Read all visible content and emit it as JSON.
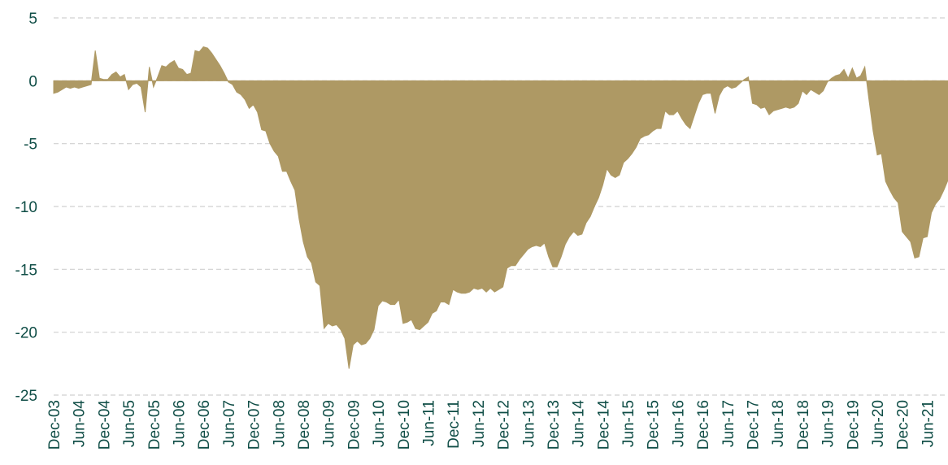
{
  "chart_data": {
    "type": "area",
    "color": "#ae9964",
    "grid": true,
    "ylim": [
      -25,
      5
    ],
    "yticks": [
      5,
      0,
      -5,
      -10,
      -15,
      -20,
      -25
    ],
    "categories": [
      "Dec-03",
      null,
      null,
      null,
      null,
      null,
      "Jun-04",
      null,
      null,
      null,
      null,
      null,
      "Dec-04",
      null,
      null,
      null,
      null,
      null,
      "Jun-05",
      null,
      null,
      null,
      null,
      null,
      "Dec-05",
      null,
      null,
      null,
      null,
      null,
      "Jun-06",
      null,
      null,
      null,
      null,
      null,
      "Dec-06",
      null,
      null,
      null,
      null,
      null,
      "Jun-07",
      null,
      null,
      null,
      null,
      null,
      "Dec-07",
      null,
      null,
      null,
      null,
      null,
      "Jun-08",
      null,
      null,
      null,
      null,
      null,
      "Dec-08",
      null,
      null,
      null,
      null,
      null,
      "Jun-09",
      null,
      null,
      null,
      null,
      null,
      "Dec-09",
      null,
      null,
      null,
      null,
      null,
      "Jun-10",
      null,
      null,
      null,
      null,
      null,
      "Dec-10",
      null,
      null,
      null,
      null,
      null,
      "Jun-11",
      null,
      null,
      null,
      null,
      null,
      "Dec-11",
      null,
      null,
      null,
      null,
      null,
      "Jun-12",
      null,
      null,
      null,
      null,
      null,
      "Dec-12",
      null,
      null,
      null,
      null,
      null,
      "Jun-13",
      null,
      null,
      null,
      null,
      null,
      "Dec-13",
      null,
      null,
      null,
      null,
      null,
      "Jun-14",
      null,
      null,
      null,
      null,
      null,
      "Dec-14",
      null,
      null,
      null,
      null,
      null,
      "Jun-15",
      null,
      null,
      null,
      null,
      null,
      "Dec-15",
      null,
      null,
      null,
      null,
      null,
      "Jun-16",
      null,
      null,
      null,
      null,
      null,
      "Dec-16",
      null,
      null,
      null,
      null,
      null,
      "Jun-17",
      null,
      null,
      null,
      null,
      null,
      "Dec-17",
      null,
      null,
      null,
      null,
      null,
      "Jun-18",
      null,
      null,
      null,
      null,
      null,
      "Dec-18",
      null,
      null,
      null,
      null,
      null,
      "Jun-19",
      null,
      null,
      null,
      null,
      null,
      "Dec-19",
      null,
      null,
      null,
      null,
      null,
      "Jun-20",
      null,
      null,
      null,
      null,
      null,
      "Dec-20",
      null,
      null,
      null,
      null,
      null,
      "Jun-21",
      null,
      null,
      null,
      null,
      null
    ],
    "values": [
      -1,
      -0.9,
      -0.7,
      -0.5,
      -0.6,
      -0.5,
      -0.6,
      -0.5,
      -0.4,
      -0.3,
      2.4,
      0.2,
      0.1,
      0.1,
      0.5,
      0.7,
      0.3,
      0.5,
      -0.7,
      -0.3,
      -0.2,
      -0.5,
      -2.5,
      1.1,
      -0.5,
      0.3,
      1.2,
      1.1,
      1.4,
      1.6,
      1.0,
      0.9,
      0.5,
      0.6,
      2.4,
      2.3,
      2.7,
      2.6,
      2.2,
      1.7,
      1.2,
      0.6,
      -0.1,
      -0.3,
      -0.9,
      -1.1,
      -1.5,
      -2.2,
      -1.9,
      -2.5,
      -3.9,
      -4.0,
      -5.0,
      -5.6,
      -6.0,
      -7.2,
      -7.2,
      -8.0,
      -8.7,
      -11,
      -12.8,
      -14,
      -14.5,
      -16,
      -16.3,
      -19.7,
      -19.3,
      -19.5,
      -19.4,
      -19.8,
      -20.5,
      -22.9,
      -21,
      -20.7,
      -21,
      -20.9,
      -20.5,
      -19.8,
      -17.9,
      -17.5,
      -17.6,
      -17.8,
      -17.8,
      -17.4,
      -19.3,
      -19.2,
      -19,
      -19.7,
      -19.8,
      -19.5,
      -19.2,
      -18.5,
      -18.3,
      -17.6,
      -17.6,
      -17.8,
      -16.6,
      -16.8,
      -16.9,
      -16.9,
      -16.8,
      -16.5,
      -16.6,
      -16.5,
      -16.8,
      -16.5,
      -16.8,
      -16.6,
      -16.4,
      -14.9,
      -14.7,
      -14.7,
      -14.2,
      -13.8,
      -13.4,
      -13.2,
      -13.1,
      -13.2,
      -12.9,
      -14,
      -14.8,
      -14.8,
      -14,
      -13,
      -12.4,
      -12,
      -12.3,
      -12.2,
      -11.3,
      -10.8,
      -10,
      -9.3,
      -8.3,
      -7,
      -7.5,
      -7.7,
      -7.5,
      -6.5,
      -6.2,
      -5.8,
      -5.3,
      -4.6,
      -4.4,
      -4.3,
      -4,
      -3.8,
      -3.8,
      -2.4,
      -2.7,
      -2.7,
      -2.4,
      -3.0,
      -3.5,
      -3.8,
      -2.8,
      -1.8,
      -1.1,
      -1.0,
      -1.0,
      -2.6,
      -1.2,
      -0.6,
      -0.4,
      -0.6,
      -0.5,
      -0.2,
      0.1,
      0.3,
      -1.8,
      -1.9,
      -2.2,
      -2.1,
      -2.7,
      -2.4,
      -2.3,
      -2.2,
      -2.1,
      -2.2,
      -2.1,
      -1.8,
      -0.8,
      -1.1,
      -0.7,
      -0.9,
      -1.1,
      -0.8,
      -0.1,
      0.2,
      0.4,
      0.5,
      0.9,
      0.2,
      1.0,
      0.2,
      0.4,
      1.1,
      -1.5,
      -4,
      -5.9,
      -5.8,
      -8,
      -8.7,
      -9.3,
      -9.7,
      -12,
      -12.4,
      -12.8,
      -14.1,
      -14,
      -12.5,
      -12.4,
      -10.5,
      -9.8,
      -9.4,
      -8.7,
      -7.9
    ]
  }
}
